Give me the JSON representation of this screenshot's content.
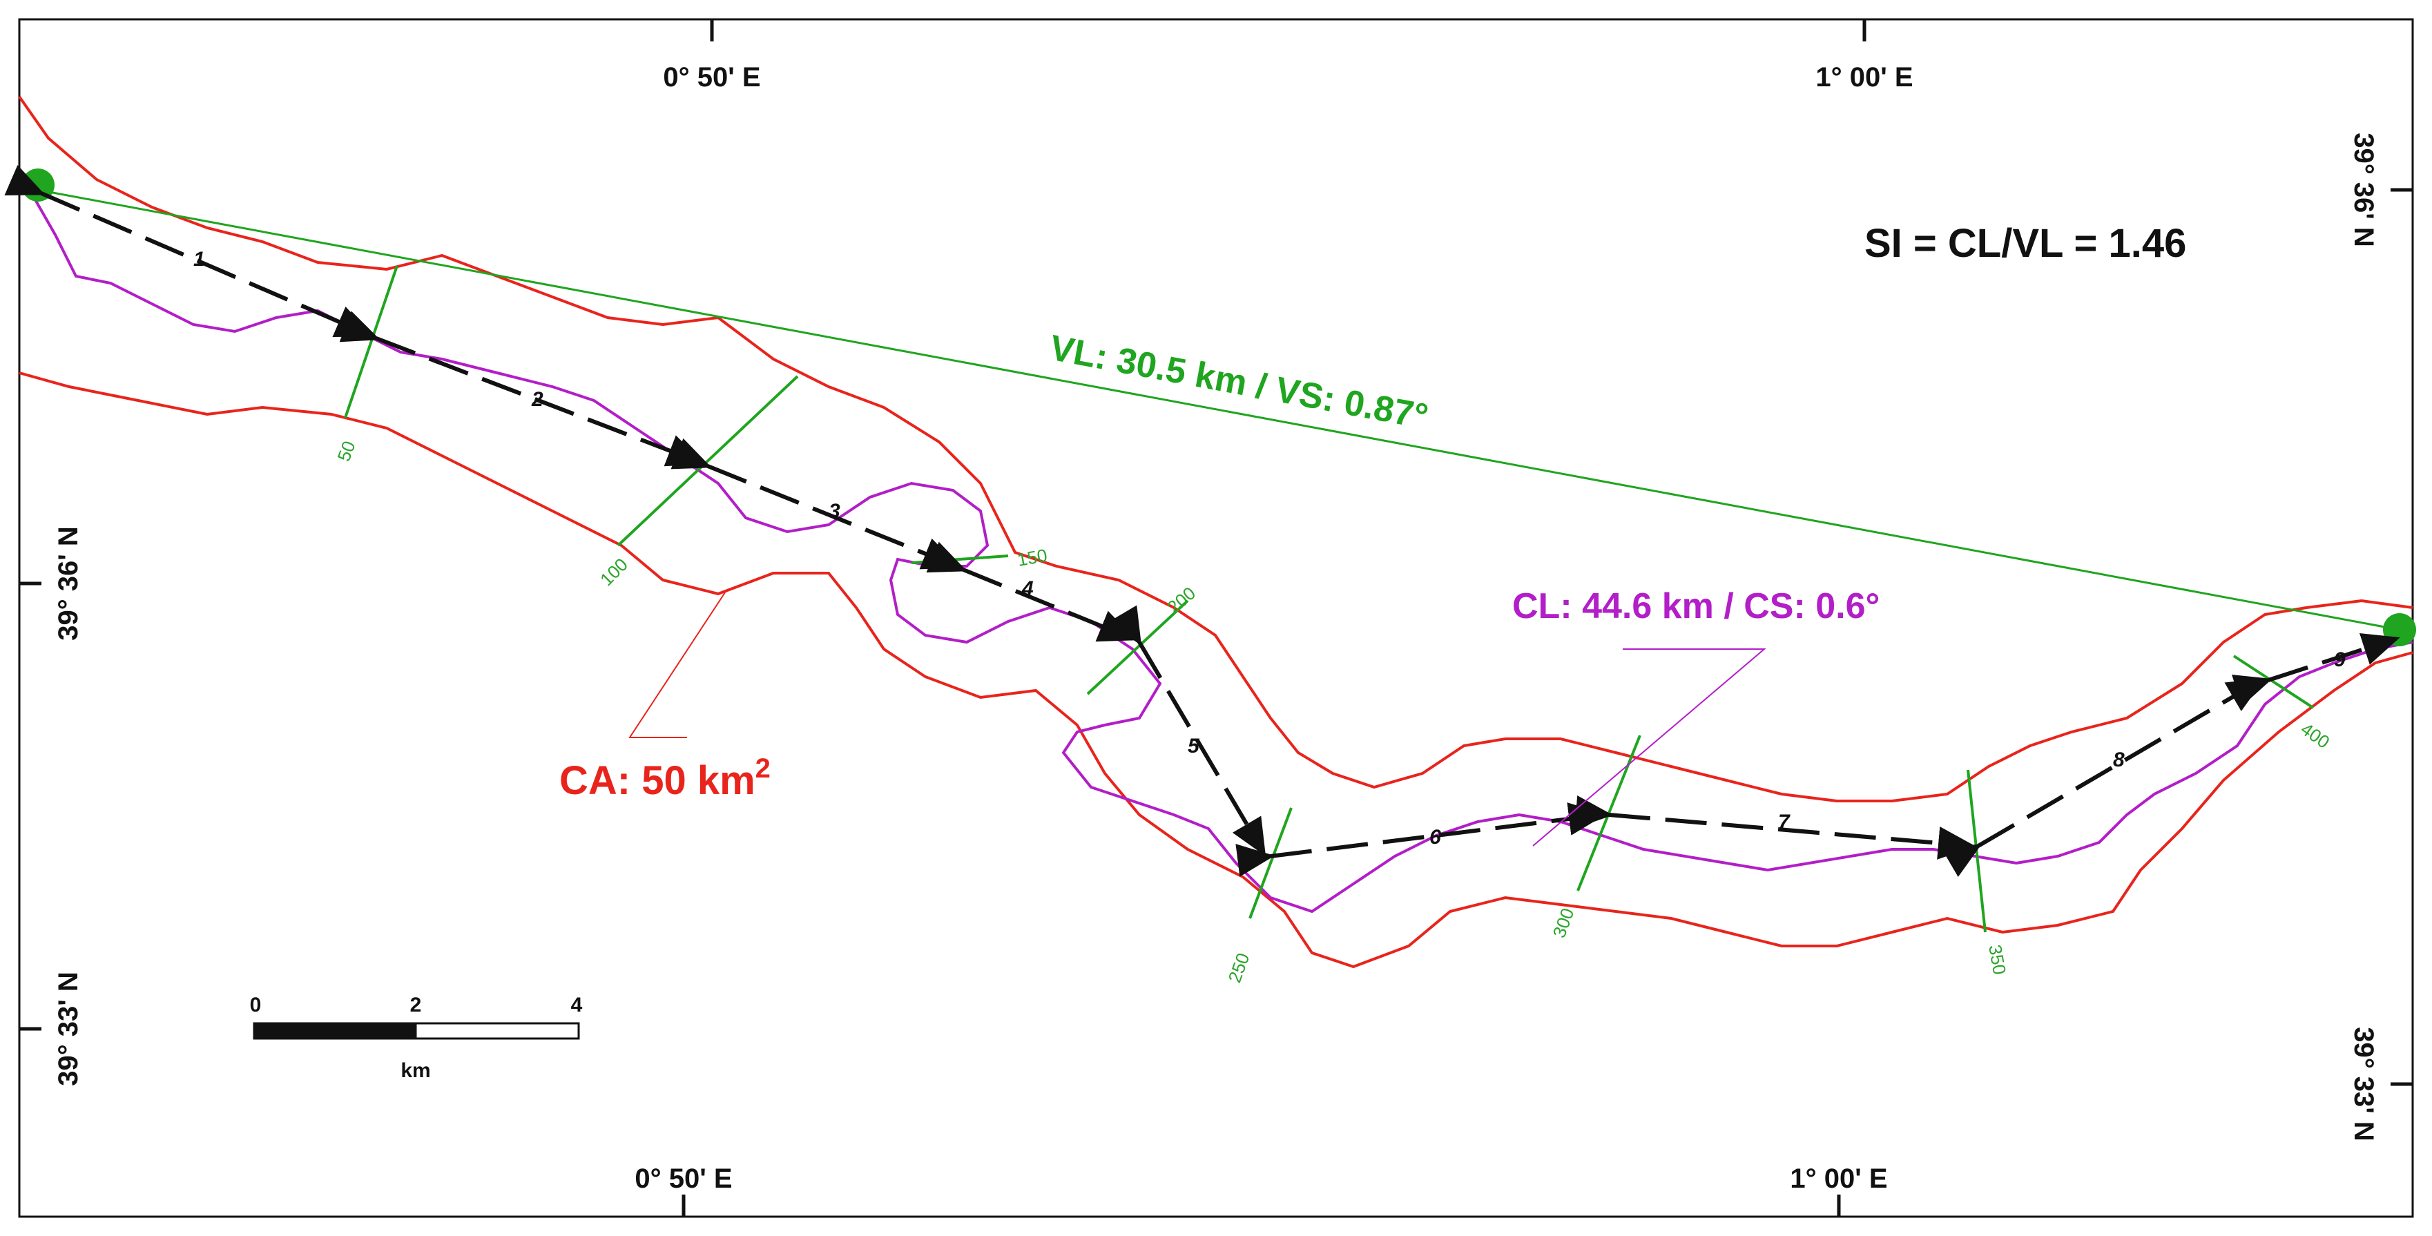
{
  "axes": {
    "top": [
      "0° 50' E",
      "1° 00' E"
    ],
    "bottom": [
      "0° 50' E",
      "1° 00' E"
    ],
    "left": [
      "39° 36' N",
      "39° 33' N"
    ],
    "right": [
      "39° 36' N",
      "39° 33' N"
    ]
  },
  "labels": {
    "si": "SI = CL/VL = 1.46",
    "vl": "VL: 30.5 km / VS: 0.87°",
    "cl": "CL: 44.6 km / CS: 0.6°",
    "ca": "CA: 50 km",
    "ca_sup": "2"
  },
  "segments": [
    "1",
    "2",
    "3",
    "4",
    "5",
    "6",
    "7",
    "8",
    "9"
  ],
  "distance_marks": [
    "50",
    "100",
    "150",
    "200",
    "250",
    "300",
    "350",
    "400"
  ],
  "scale_bar": {
    "ticks": [
      "0",
      "2",
      "4"
    ],
    "unit": "km"
  },
  "colors": {
    "canyon_area": "#e8241c",
    "channel": "#b21ec7",
    "valley": "#1fa51f",
    "segment_arrows": "#111111"
  }
}
